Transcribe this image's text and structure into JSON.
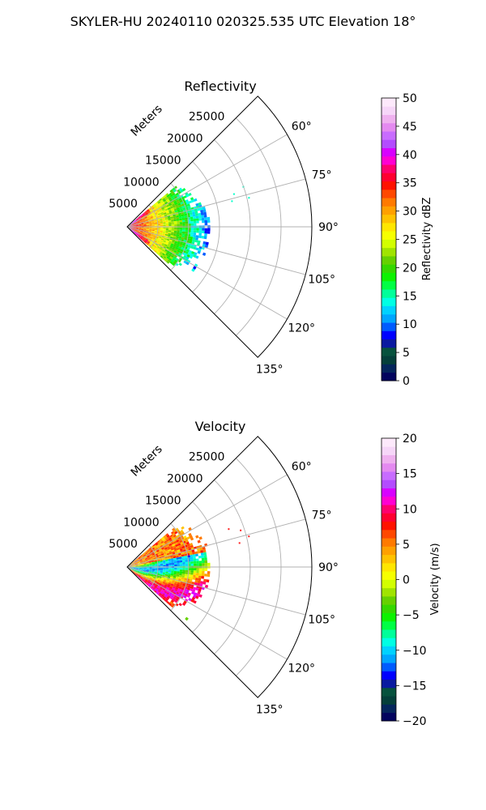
{
  "figure": {
    "title": "SKYLER-HU  20240110  020325.535 UTC Elevation 18°"
  },
  "chart_data": [
    {
      "type": "heatmap",
      "projection": "polar-sector",
      "title": "Reflectivity",
      "radial_label": "Meters",
      "theta_ticks": [
        "60°",
        "75°",
        "90°",
        "105°",
        "120°",
        "135°"
      ],
      "theta_tick_values": [
        60,
        75,
        90,
        105,
        120,
        135
      ],
      "theta_range": [
        45,
        135
      ],
      "r_ticks": [
        "5000",
        "10000",
        "15000",
        "20000",
        "25000"
      ],
      "r_tick_values": [
        5000,
        10000,
        15000,
        20000,
        25000
      ],
      "r_range": [
        0,
        30000
      ],
      "grid": true,
      "data_extent": {
        "theta": [
          50,
          132
        ],
        "r_max": 13500
      },
      "colorbar": {
        "label": "Reflectivity dBZ",
        "range": [
          0,
          50
        ],
        "ticks": [
          "0",
          "5",
          "10",
          "15",
          "20",
          "25",
          "30",
          "35",
          "40",
          "45",
          "50"
        ],
        "colors": [
          "#03045e",
          "#05265c",
          "#053f3a",
          "#07523d",
          "#0a1aa0",
          "#0000ff",
          "#005bff",
          "#00a6ff",
          "#00d2ff",
          "#00ffe4",
          "#00ff9a",
          "#00ff44",
          "#0df200",
          "#35d800",
          "#66d100",
          "#a0e400",
          "#d2ff00",
          "#f6ff00",
          "#ffe600",
          "#ffc200",
          "#ffa000",
          "#ff7a00",
          "#ff4800",
          "#ff1200",
          "#ff0030",
          "#ff006e",
          "#ff00d2",
          "#d800ff",
          "#b34cff",
          "#c86cff",
          "#e48af0",
          "#efb1ef",
          "#f6d6f8",
          "#fde9fb"
        ]
      }
    },
    {
      "type": "heatmap",
      "projection": "polar-sector",
      "title": "Velocity",
      "radial_label": "Meters",
      "theta_ticks": [
        "60°",
        "75°",
        "90°",
        "105°",
        "120°",
        "135°"
      ],
      "theta_tick_values": [
        60,
        75,
        90,
        105,
        120,
        135
      ],
      "theta_range": [
        45,
        135
      ],
      "r_ticks": [
        "5000",
        "10000",
        "15000",
        "20000",
        "25000"
      ],
      "r_tick_values": [
        5000,
        10000,
        15000,
        20000,
        25000
      ],
      "r_range": [
        0,
        30000
      ],
      "grid": true,
      "data_extent": {
        "theta": [
          50,
          132
        ],
        "r_max": 13500
      },
      "colorbar": {
        "label": "Velocity (m/s)",
        "range": [
          -20,
          20
        ],
        "ticks": [
          "−20",
          "−15",
          "−10",
          "−5",
          "0",
          "5",
          "10",
          "15",
          "20"
        ],
        "colors": [
          "#03045e",
          "#05265c",
          "#053f3a",
          "#07523d",
          "#0a1aa0",
          "#0000ff",
          "#005bff",
          "#00a6ff",
          "#00d2ff",
          "#00ffe4",
          "#00ff9a",
          "#00ff44",
          "#0df200",
          "#35d800",
          "#66d100",
          "#a0e400",
          "#d2ff00",
          "#f6ff00",
          "#ffe600",
          "#ffc200",
          "#ffa000",
          "#ff7a00",
          "#ff4800",
          "#ff1200",
          "#ff0030",
          "#ff006e",
          "#ff00d2",
          "#d800ff",
          "#b34cff",
          "#c86cff",
          "#e48af0",
          "#efb1ef",
          "#f6d6f8",
          "#fde9fb"
        ]
      }
    }
  ]
}
